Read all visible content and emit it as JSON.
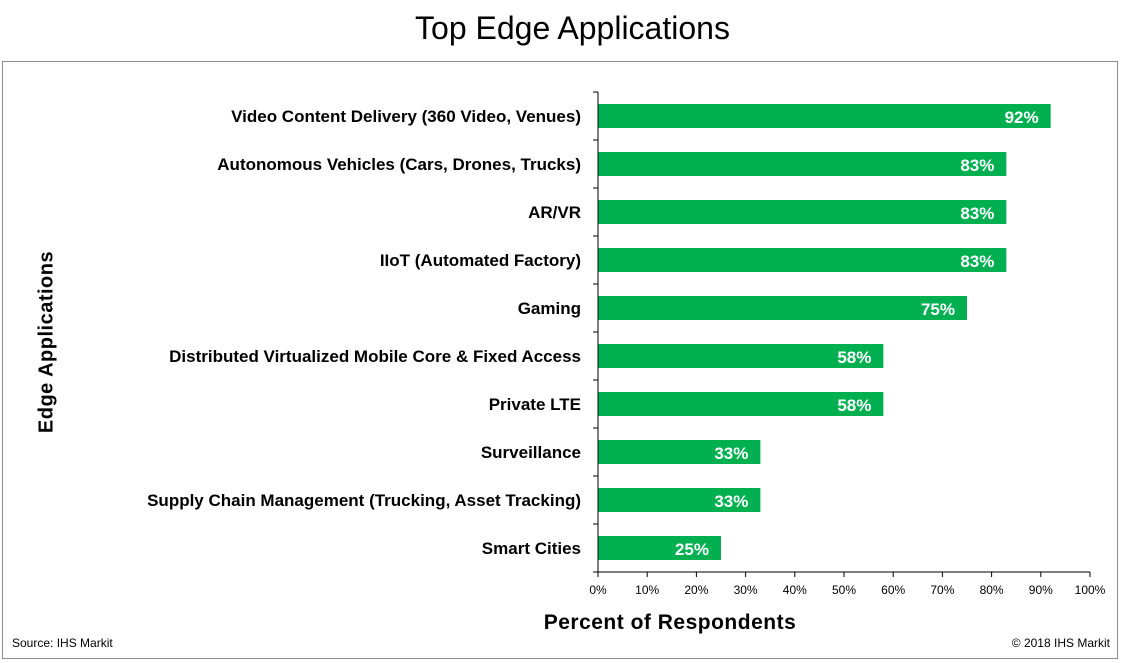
{
  "chart_data": {
    "type": "bar",
    "orientation": "horizontal",
    "title": "Top Edge Applications",
    "xlabel": "Percent of Respondents",
    "ylabel": "Edge Applications",
    "categories": [
      "Video Content Delivery (360 Video, Venues)",
      "Autonomous Vehicles (Cars, Drones, Trucks)",
      "AR/VR",
      "IIoT (Automated Factory)",
      "Gaming",
      "Distributed Virtualized  Mobile Core & Fixed Access",
      "Private LTE",
      "Surveillance",
      "Supply Chain Management (Trucking, Asset Tracking)",
      "Smart Cities"
    ],
    "values": [
      92,
      83,
      83,
      83,
      75,
      58,
      58,
      33,
      33,
      25
    ],
    "data_labels": [
      "92%",
      "83%",
      "83%",
      "83%",
      "75%",
      "58%",
      "58%",
      "33%",
      "33%",
      "25%"
    ],
    "xlim": [
      0,
      100
    ],
    "x_ticks": [
      "0%",
      "10%",
      "20%",
      "30%",
      "40%",
      "50%",
      "60%",
      "70%",
      "80%",
      "90%",
      "100%"
    ],
    "bar_color": "#00b050",
    "grid": false,
    "legend": "none"
  },
  "footer": {
    "source": "Source: IHS Markit",
    "copyright": "© 2018 IHS Markit"
  }
}
